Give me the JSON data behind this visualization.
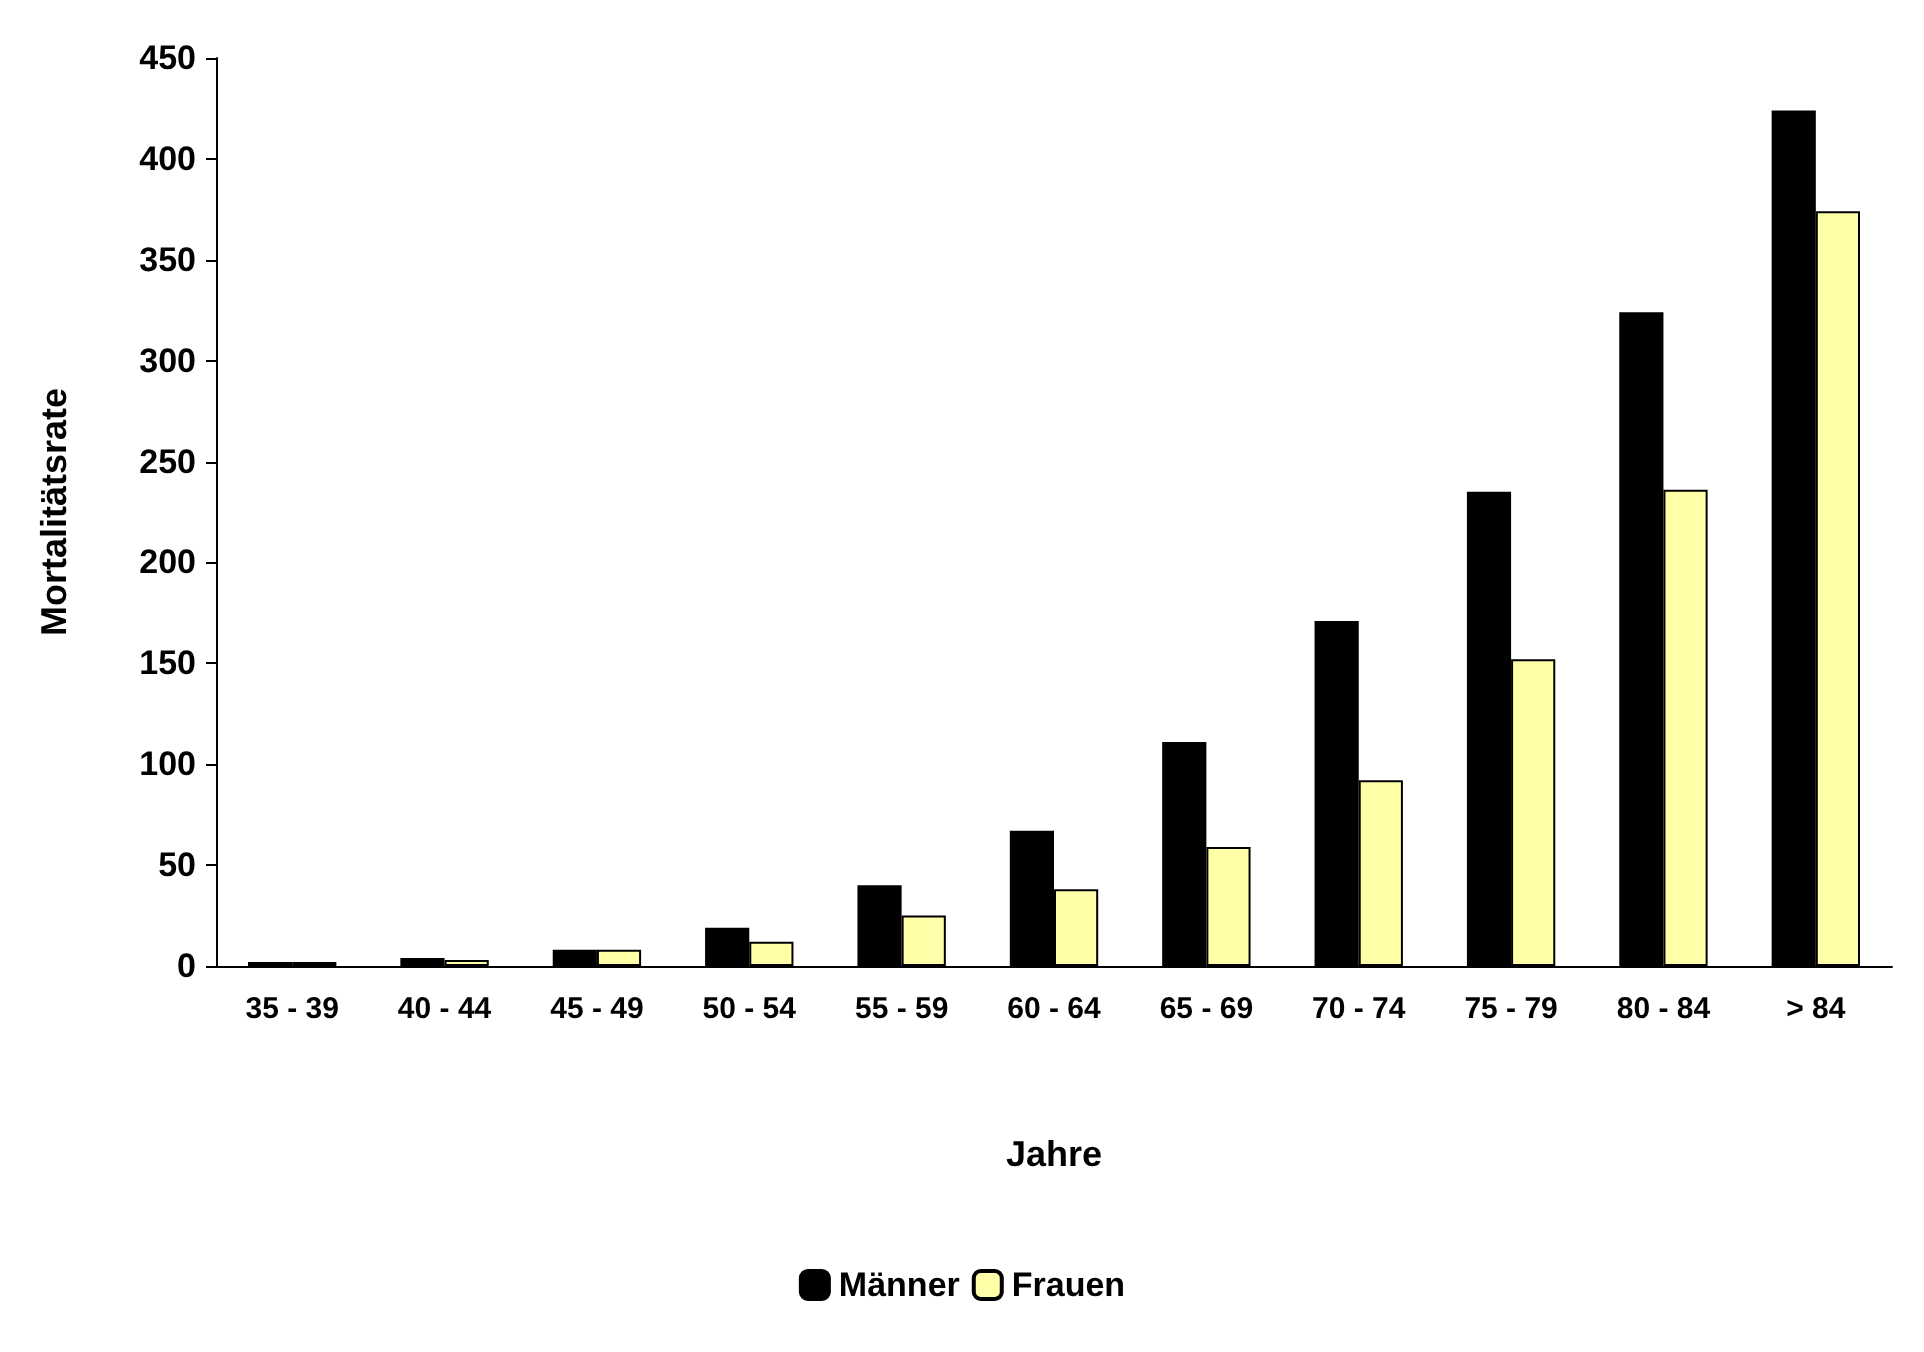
{
  "chart_data": {
    "type": "bar",
    "xlabel": "Jahre",
    "ylabel": "Mortalitätsrate",
    "categories": [
      "35 - 39",
      "40 - 44",
      "45 - 49",
      "50 - 54",
      "55 - 59",
      "60 - 64",
      "65 - 69",
      "70 - 74",
      "75 - 79",
      "80 - 84",
      "> 84"
    ],
    "series": [
      {
        "name": "Männer",
        "color": "#000000",
        "values": [
          2,
          4,
          8,
          19,
          40,
          67,
          111,
          171,
          235,
          324,
          424
        ]
      },
      {
        "name": "Frauen",
        "color": "#ffffa8",
        "values": [
          2,
          3,
          8,
          12,
          25,
          38,
          59,
          92,
          152,
          236,
          374
        ]
      }
    ],
    "ylim": [
      0,
      450
    ],
    "yticks": [
      0,
      50,
      100,
      150,
      200,
      250,
      300,
      350,
      400,
      450
    ],
    "grid": false,
    "legend": "bottom"
  }
}
